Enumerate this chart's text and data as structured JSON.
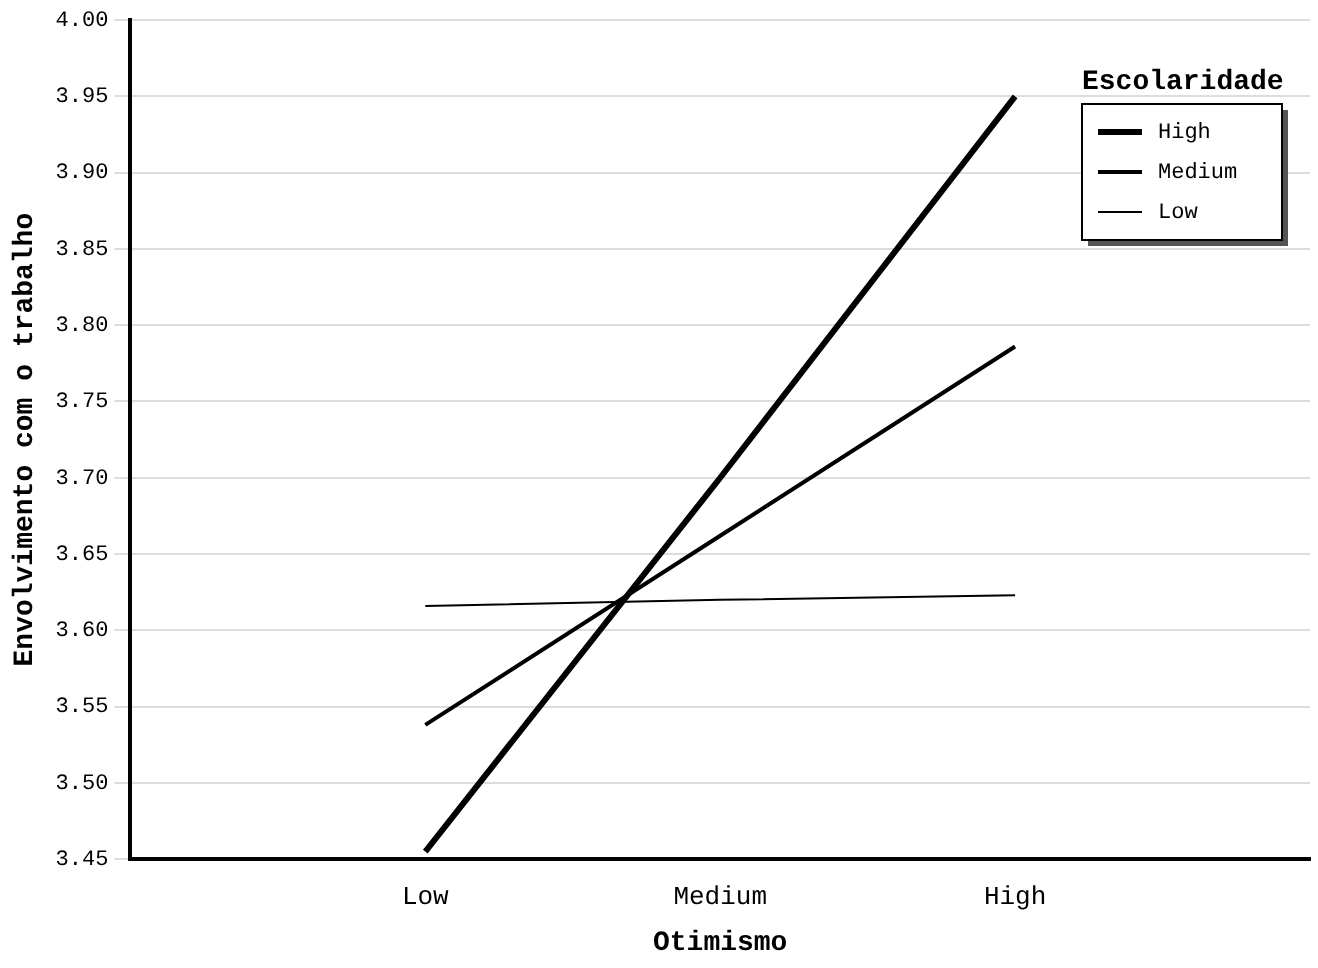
{
  "chart_data": {
    "type": "line",
    "xlabel": "Otimismo",
    "ylabel": "Envolvimento com o trabalho",
    "legend_title": "Escolaridade",
    "categories": [
      "Low",
      "Medium",
      "High"
    ],
    "series": [
      {
        "name": "High",
        "color": "#000000",
        "values": [
          3.455,
          3.7,
          3.95
        ]
      },
      {
        "name": "Medium",
        "color": "#000000",
        "values": [
          3.538,
          3.662,
          3.786
        ]
      },
      {
        "name": "Low",
        "color": "#000000",
        "values": [
          3.616,
          3.62,
          3.623
        ]
      }
    ],
    "ylim": [
      3.45,
      4.0
    ],
    "yticks": [
      3.45,
      {
        "value": 3.5,
        "label": "3.50"
      },
      3.55,
      {
        "value": 3.6,
        "label": "3.60"
      },
      3.65,
      {
        "value": 3.7,
        "label": "3.70"
      },
      3.75,
      {
        "value": 3.8,
        "label": "3.80"
      },
      3.85,
      {
        "value": 3.9,
        "label": "3.90"
      },
      3.95,
      {
        "value": 4.0,
        "label": "4.00"
      }
    ],
    "grid": "y",
    "legend": "top right",
    "marker": "none",
    "line_style": "solid"
  }
}
